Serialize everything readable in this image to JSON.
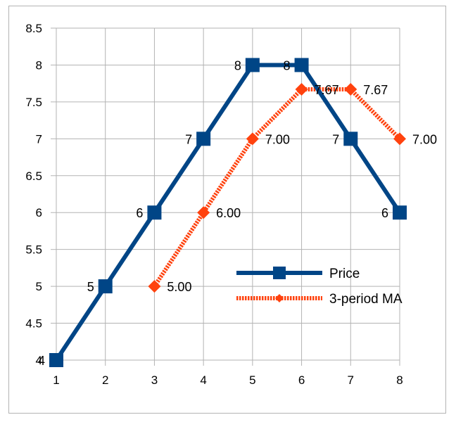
{
  "chart_data": {
    "type": "line",
    "x": [
      1,
      2,
      3,
      4,
      5,
      6,
      7,
      8
    ],
    "xlim": [
      1,
      8
    ],
    "ylim": [
      4,
      8.5
    ],
    "yticks": [
      "4",
      "4.5",
      "5",
      "5.5",
      "6",
      "6.5",
      "7",
      "7.5",
      "8",
      "8.5"
    ],
    "grid": true,
    "legend": "bottom-right",
    "series": [
      {
        "name": "Price",
        "color": "#004586",
        "marker": "square",
        "style": "solid",
        "x": [
          1,
          2,
          3,
          4,
          5,
          6,
          7,
          8
        ],
        "values": [
          4,
          5,
          6,
          7,
          8,
          8,
          7,
          6
        ],
        "labels": [
          "4",
          "5",
          "6",
          "7",
          "8",
          "8",
          "7",
          "6"
        ]
      },
      {
        "name": "3-period MA",
        "color": "#ff420e",
        "marker": "diamond",
        "style": "dotted",
        "x": [
          3,
          4,
          5,
          6,
          7,
          8
        ],
        "values": [
          5.0,
          6.0,
          7.0,
          7.67,
          7.67,
          7.0
        ],
        "labels": [
          "5.00",
          "6.00",
          "7.00",
          "7.67",
          "7.67",
          "7.00"
        ]
      }
    ]
  }
}
